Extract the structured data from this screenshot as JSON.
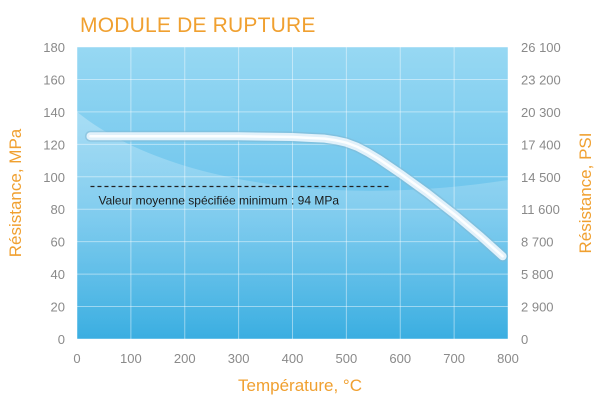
{
  "chart_data": {
    "type": "line",
    "title": "MODULE DE RUPTURE",
    "xlabel": "Température, °C",
    "ylabel": "Résistance, MPa",
    "ylabel_right": "Résistance, PSI",
    "xlim": [
      0,
      800
    ],
    "ylim": [
      0,
      180
    ],
    "x_ticks": [
      0,
      100,
      200,
      300,
      400,
      500,
      600,
      700,
      800
    ],
    "y_ticks": [
      0,
      20,
      40,
      60,
      80,
      100,
      120,
      140,
      160,
      180
    ],
    "y2_ticks": [
      "0",
      "2 900",
      "5 800",
      "8 700",
      "11 600",
      "14 500",
      "17 400",
      "20 300",
      "23 200",
      "26 100"
    ],
    "grid": true,
    "series": [
      {
        "x": [
          25,
          100,
          200,
          300,
          400,
          430,
          460,
          480,
          500,
          520,
          540,
          560,
          600,
          650,
          700,
          750,
          790
        ],
        "y": [
          125,
          125,
          125,
          125,
          124.5,
          124,
          123.5,
          122.5,
          121,
          118.5,
          115,
          111,
          102,
          90,
          77,
          63,
          51
        ]
      }
    ],
    "reference_line": {
      "y": 94,
      "x_start": 25,
      "x_end": 580,
      "label": "Valeur moyenne spécifiée minimum : 94 MPa"
    },
    "colors": {
      "title": "#f0a030",
      "axis_labels": "#f0a030",
      "ticks": "#8a8a8a",
      "plot_bg_top": "#8fd5f2",
      "plot_bg_bottom": "#3aaee0",
      "curve": "#e2f1fa",
      "reference_line": "#222222"
    }
  }
}
